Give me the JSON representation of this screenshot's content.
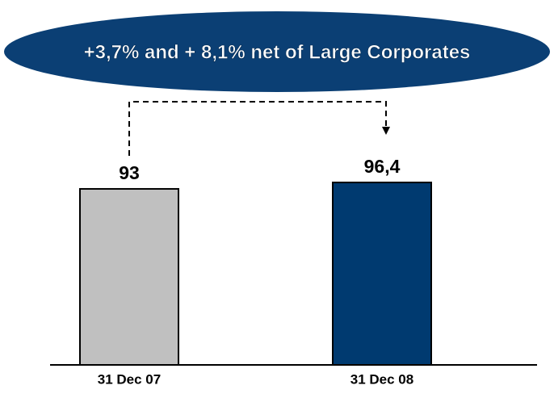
{
  "chart_data": {
    "type": "bar",
    "annotation": "+3,7% and + 8,1% net of Large Corporates",
    "categories": [
      "31 Dec 07",
      "31 Dec 08"
    ],
    "values": [
      93,
      96.4
    ],
    "value_labels": [
      "93",
      "96,4"
    ],
    "colors": [
      "#c0c0c0",
      "#003a70"
    ]
  }
}
